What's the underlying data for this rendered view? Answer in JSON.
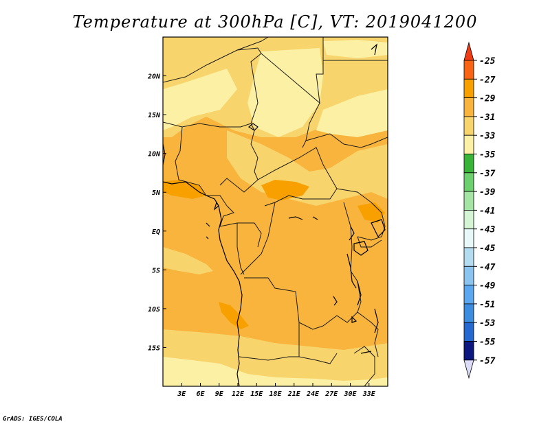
{
  "title": "Temperature at 300hPa [C], VT: 2019041200",
  "credit": "GrADS: IGES/COLA",
  "map": {
    "lon_range": [
      0,
      36
    ],
    "lat_range": [
      -20,
      25
    ],
    "lon_ticks": [
      "3E",
      "6E",
      "9E",
      "12E",
      "15E",
      "18E",
      "21E",
      "24E",
      "27E",
      "30E",
      "33E"
    ],
    "lat_ticks": [
      "20N",
      "15N",
      "10N",
      "5N",
      "EQ",
      "5S",
      "10S",
      "15S"
    ],
    "field": "Temperature at 300hPa",
    "units": "C"
  },
  "colorbar": {
    "labels": [
      "-25",
      "-27",
      "-29",
      "-31",
      "-33",
      "-35",
      "-37",
      "-39",
      "-41",
      "-43",
      "-45",
      "-47",
      "-49",
      "-51",
      "-53",
      "-55",
      "-57"
    ],
    "colors": {
      "top_arrow": "#f03c14",
      "bottom_arrow": "#dcdcf8",
      "segments": [
        "#f86414",
        "#f8a000",
        "#f8b43c",
        "#f8d46c",
        "#fcf0a4",
        "#38b438",
        "#6cd06c",
        "#a4e4a4",
        "#d4f4d4",
        "#e8f8f8",
        "#b4dcf0",
        "#8cc4f0",
        "#5ca8f0",
        "#3c8ce0",
        "#2468d0",
        "#1448b4",
        "#0c1880"
      ]
    }
  },
  "field_colors": {
    "band_29_31": "#f8b43c",
    "band_31_33": "#f8d46c",
    "band_33_35": "#fcf0a4",
    "band_27_29": "#f8a000"
  }
}
